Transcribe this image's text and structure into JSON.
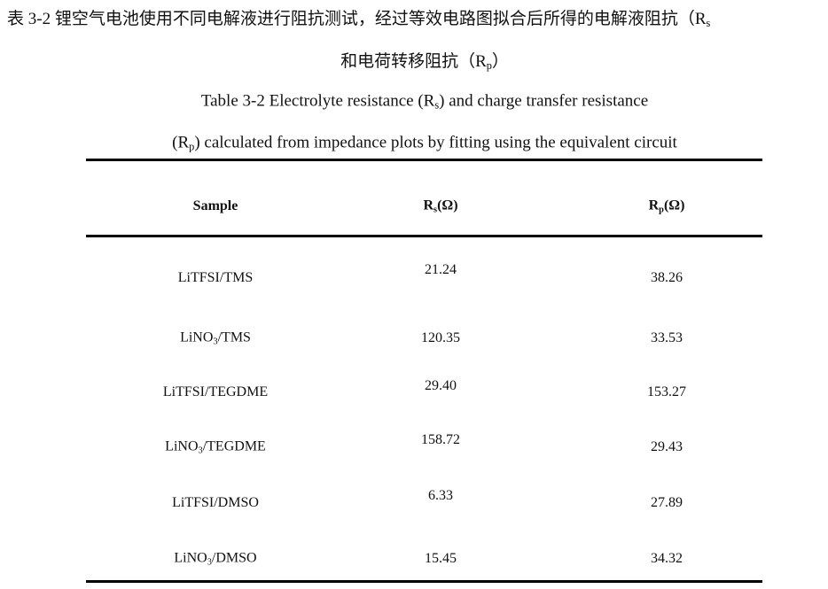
{
  "caption": {
    "chinese": [
      [
        "表 3-2 锂空气电池使用不同电解液进行阻抗测试，经过等效电路图拟合后所得的电解液阻抗（R",
        "s"
      ],
      [
        "和电荷转移阻抗（R",
        "p",
        "）"
      ]
    ],
    "english": [
      [
        "Table 3-2 Electrolyte resistance (R",
        "s",
        ") and charge transfer resistance"
      ],
      [
        "(R",
        "p",
        ") calculated from impedance plots by fitting using the equivalent circuit"
      ]
    ]
  },
  "table": {
    "header": [
      [
        "Sample"
      ],
      [
        "R",
        "s",
        "(Ω)"
      ],
      [
        "R",
        "p",
        "(Ω)"
      ]
    ],
    "rows": [
      [
        [
          "LiTFSI/TMS"
        ],
        "21.24",
        "38.26"
      ],
      [
        [
          "LiNO",
          "3",
          "/TMS"
        ],
        "120.35",
        "33.53"
      ],
      [
        [
          "LiTFSI/TEGDME"
        ],
        "29.40",
        "153.27"
      ],
      [
        [
          "LiNO",
          "3",
          "/TEGDME"
        ],
        "158.72",
        "29.43"
      ],
      [
        [
          "LiTFSI/DMSO"
        ],
        "6.33",
        "27.89"
      ],
      [
        [
          "LiNO",
          "3",
          "/DMSO"
        ],
        "15.45",
        "34.32"
      ]
    ]
  }
}
